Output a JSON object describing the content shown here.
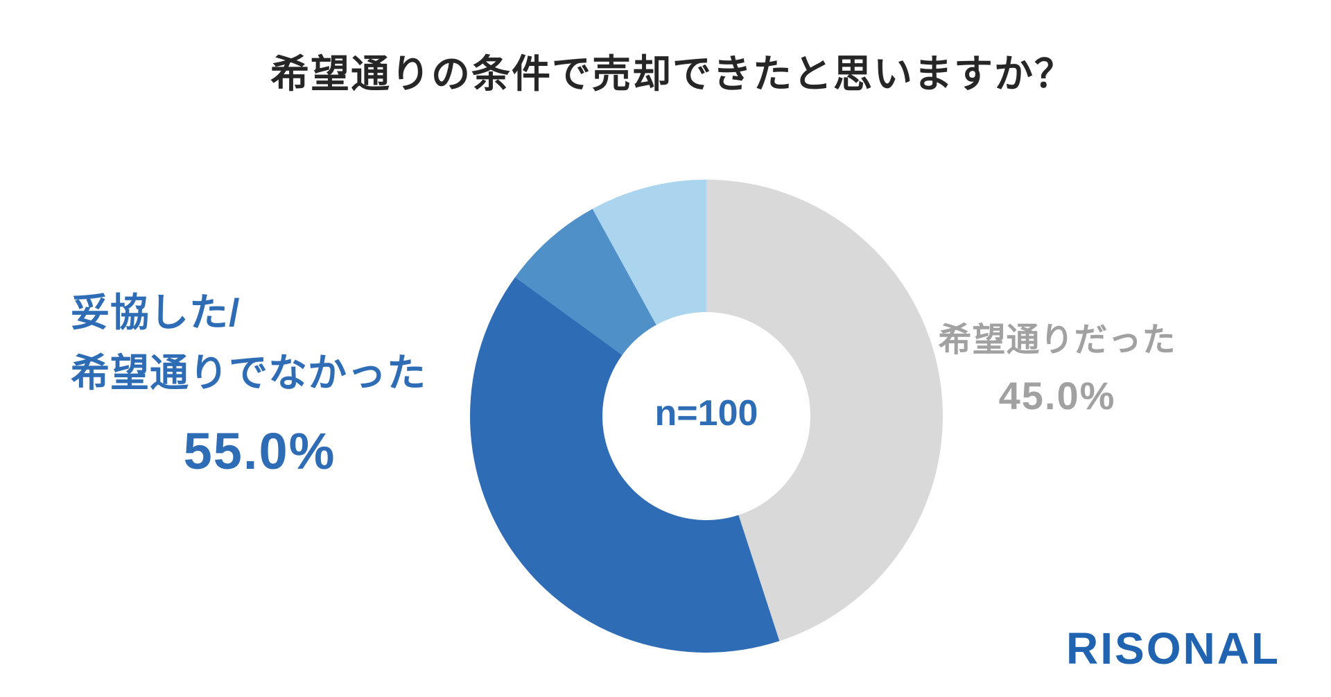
{
  "title": "希望通りの条件で売却できたと思いますか？",
  "center_label": "n=100",
  "logo_text": "RISONAL",
  "labels": {
    "left_line1": "妥協した/",
    "left_line2": "希望通りでなかった",
    "left_value": "55.0%",
    "right_line1": "希望通りだった",
    "right_value": "45.0%"
  },
  "colors": {
    "gray_segment": "#d9d9d9",
    "dark_blue_segment": "#2e6db5",
    "mid_blue_segment": "#4f90c8",
    "light_blue_segment": "#abd4ee",
    "blue_text": "#2e6db5",
    "gray_text": "#a1a1a1",
    "title_text": "#262626",
    "logo_blue": "#2063b0"
  },
  "chart_data": {
    "type": "pie",
    "donut": true,
    "title": "希望通りの条件で売却できたと思いますか？",
    "center_text": "n=100",
    "n": 100,
    "categories": [
      "希望通りだった",
      "妥協した/希望通りでなかった"
    ],
    "values": [
      45.0,
      55.0
    ],
    "start_angle_deg": 0,
    "direction": "clockwise",
    "legend_position": "side-labels",
    "segments": [
      {
        "id": "as-hoped",
        "label": "希望通りだった",
        "value": 45.0,
        "color": "#d9d9d9"
      },
      {
        "id": "compromised-dark",
        "label": "妥協した/希望通りでなかった (dark shade, estimated)",
        "value": 40.0,
        "color": "#2e6db5"
      },
      {
        "id": "compromised-mid",
        "label": "妥協した/希望通りでなかった (mid shade, estimated)",
        "value": 7.0,
        "color": "#4f90c8"
      },
      {
        "id": "compromised-light",
        "label": "妥協した/希望通りでなかった (light shade, estimated)",
        "value": 8.0,
        "color": "#abd4ee"
      }
    ],
    "geometry": {
      "outer_radius_px": 341,
      "inner_radius_px": 150
    }
  }
}
